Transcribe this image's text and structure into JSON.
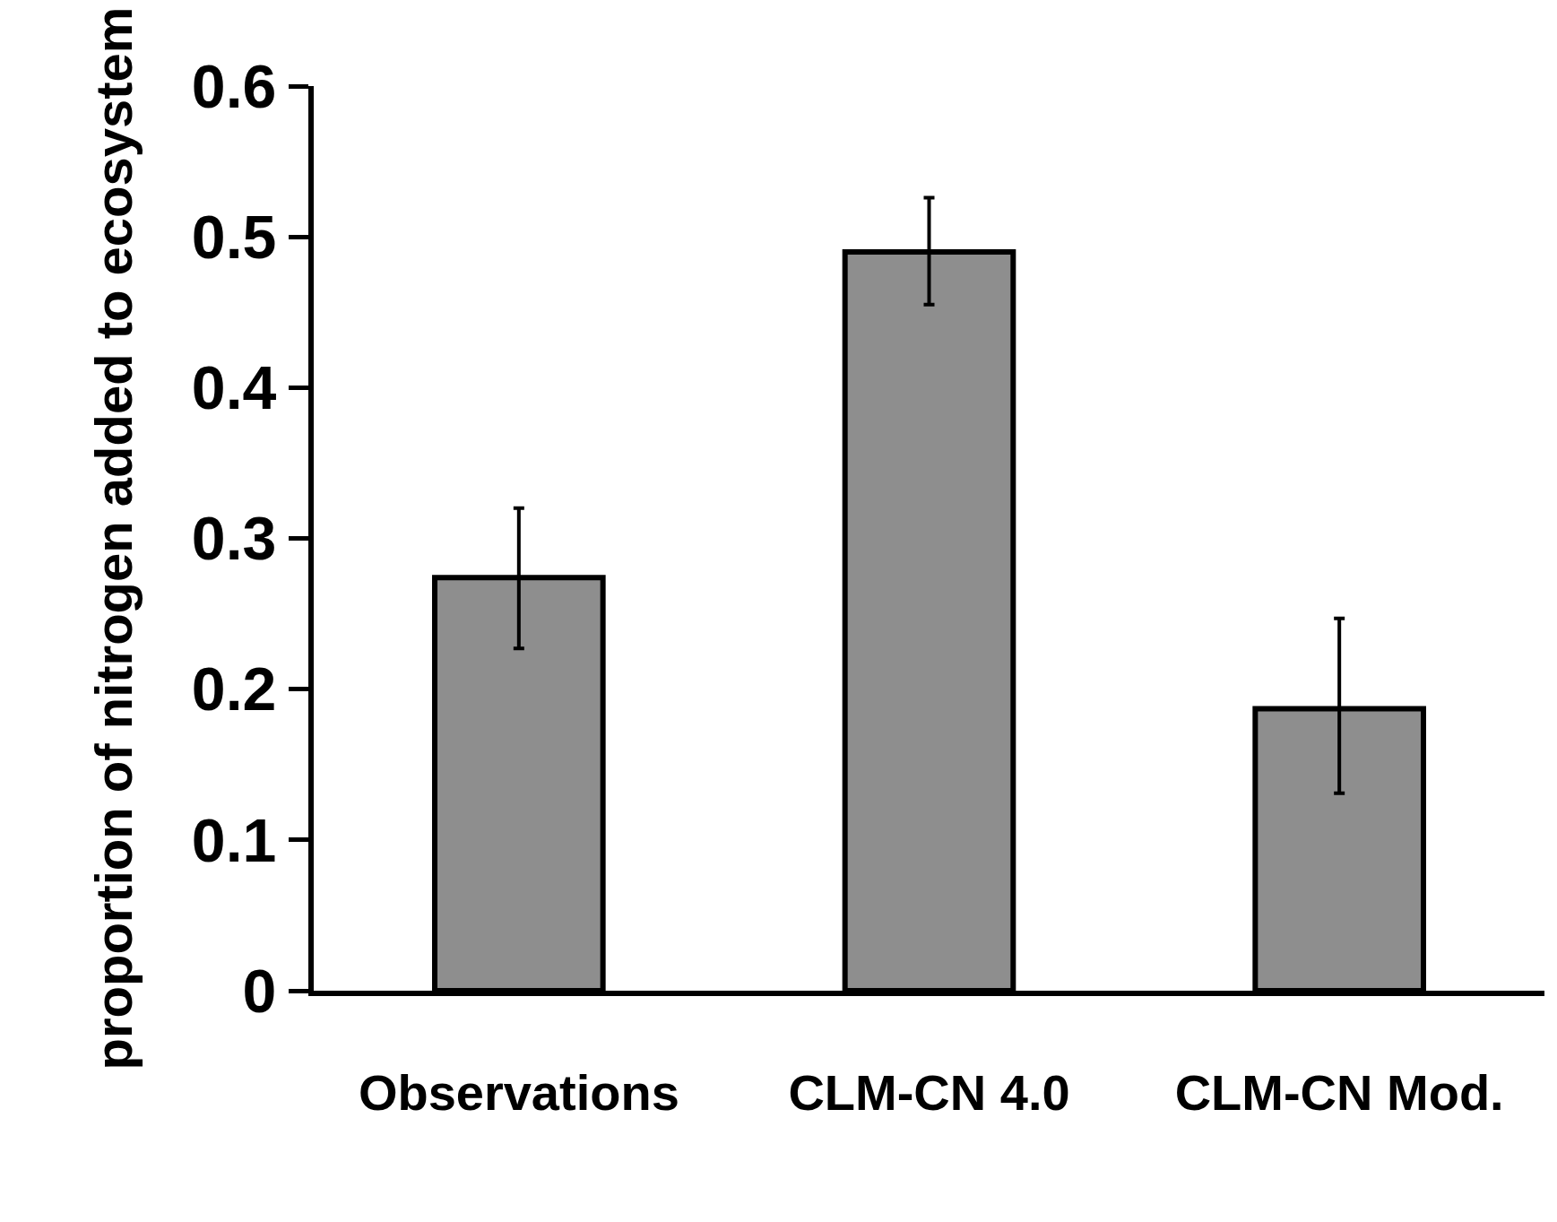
{
  "chart_data": {
    "type": "bar",
    "ylabel": "proportion of nitrogen added to ecosystem",
    "categories": [
      "Observations",
      "CLM-CN 4.0",
      "CLM-CN Mod."
    ],
    "values": [
      0.274,
      0.49,
      0.187
    ],
    "errors": [
      [
        0.227,
        0.32
      ],
      [
        0.455,
        0.526
      ],
      [
        0.131,
        0.247
      ]
    ],
    "color": "#8e8e8e",
    "ylim": [
      0,
      0.6
    ],
    "yticks": [
      0,
      0.1,
      0.2,
      0.3,
      0.4,
      0.5,
      0.6
    ],
    "grid": false
  }
}
